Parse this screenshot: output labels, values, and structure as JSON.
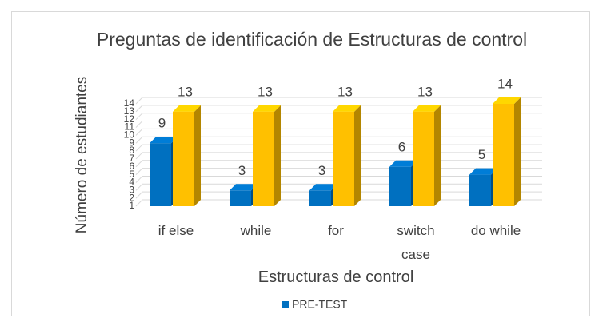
{
  "chart_data": {
    "type": "bar3d",
    "title": "Preguntas de identificación de Estructuras de control",
    "x_label": "Estructuras de control",
    "y_label": "Número de estudiantes",
    "categories": [
      "if else",
      "while",
      "for",
      "switch case",
      "do while"
    ],
    "series": [
      {
        "name": "PRE-TEST",
        "color": "#0070c0",
        "values": [
          9,
          3,
          3,
          6,
          5
        ]
      },
      {
        "color": "#ffc000",
        "values": [
          13,
          13,
          13,
          13,
          14
        ]
      }
    ],
    "ylim": [
      1,
      14
    ],
    "yticks": [
      1,
      2,
      3,
      4,
      5,
      6,
      7,
      8,
      9,
      10,
      11,
      12,
      13,
      14
    ],
    "grid": true,
    "legend": "bottom"
  }
}
